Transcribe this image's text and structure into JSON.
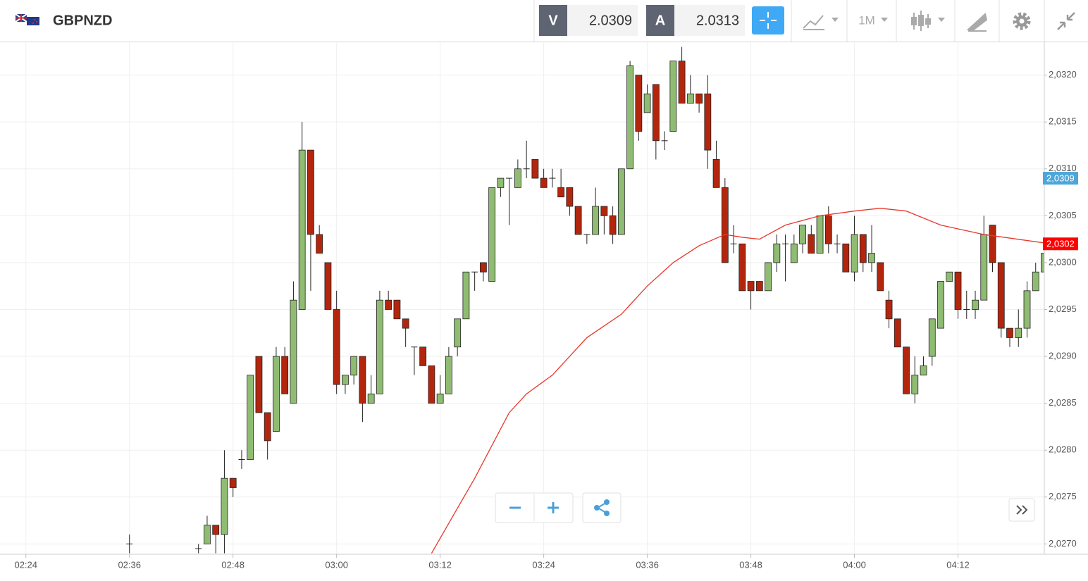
{
  "header": {
    "symbol": "GBPNZD",
    "sell_label": "V",
    "sell": "2.0309",
    "buy_label": "A",
    "buy": "2.0313",
    "timeframe": "1M"
  },
  "chart_data": {
    "type": "candlestick",
    "x": [
      "02:36",
      "02:44",
      "02:45",
      "02:46",
      "02:47",
      "02:48",
      "02:49",
      "02:50",
      "02:51",
      "02:52",
      "02:53",
      "02:54",
      "02:55",
      "02:56",
      "02:57",
      "02:58",
      "02:59",
      "03:00",
      "03:01",
      "03:02",
      "03:03",
      "03:04",
      "03:05",
      "03:06",
      "03:07",
      "03:08",
      "03:09",
      "03:10",
      "03:11",
      "03:12",
      "03:13",
      "03:14",
      "03:15",
      "03:16",
      "03:17",
      "03:18",
      "03:19",
      "03:20",
      "03:21",
      "03:22",
      "03:23",
      "03:24",
      "03:25",
      "03:26",
      "03:27",
      "03:28",
      "03:29",
      "03:30",
      "03:31",
      "03:32",
      "03:33",
      "03:34",
      "03:35",
      "03:36",
      "03:37",
      "03:38",
      "03:39",
      "03:40",
      "03:41",
      "03:42",
      "03:43",
      "03:44",
      "03:45",
      "03:46",
      "03:47",
      "03:48",
      "03:49",
      "03:50",
      "03:51",
      "03:52",
      "03:53",
      "03:54",
      "03:55",
      "03:56",
      "03:57",
      "03:58",
      "03:59",
      "04:00",
      "04:01",
      "04:02",
      "04:03",
      "04:04",
      "04:05",
      "04:06",
      "04:07",
      "04:08",
      "04:09",
      "04:10",
      "04:11",
      "04:12",
      "04:13",
      "04:14",
      "04:15",
      "04:16",
      "04:17",
      "04:18",
      "04:19",
      "04:20",
      "04:21",
      "04:22"
    ],
    "open": [
      2.027,
      2.02695,
      2.027,
      2.0272,
      2.0271,
      2.0277,
      2.0279,
      2.0279,
      2.029,
      2.0284,
      2.0282,
      2.029,
      2.0285,
      2.0295,
      2.0312,
      2.0303,
      2.03,
      2.0295,
      2.0287,
      2.0288,
      2.029,
      2.0285,
      2.0286,
      2.0296,
      2.0296,
      2.0294,
      2.0291,
      2.0291,
      2.0289,
      2.0285,
      2.0286,
      2.0291,
      2.0294,
      2.0299,
      2.03,
      2.0298,
      2.0308,
      2.0309,
      2.0308,
      2.031,
      2.0311,
      2.0309,
      2.0309,
      2.0308,
      2.0308,
      2.0306,
      2.0303,
      2.0303,
      2.0306,
      2.0305,
      2.0303,
      2.031,
      2.032,
      2.0316,
      2.0319,
      2.0313,
      2.0314,
      2.03215,
      2.0317,
      2.0318,
      2.0318,
      2.0311,
      2.0308,
      2.0302,
      2.0302,
      2.0298,
      2.0298,
      2.0297,
      2.03,
      2.0302,
      2.03,
      2.0302,
      2.0303,
      2.0301,
      2.0305,
      2.0302,
      2.0302,
      2.0299,
      2.0303,
      2.03,
      2.03,
      2.0296,
      2.0294,
      2.0291,
      2.0286,
      2.0288,
      2.029,
      2.0293,
      2.0298,
      2.0299,
      2.0295,
      2.0295,
      2.0296,
      2.0304,
      2.03,
      2.0293,
      2.0292,
      2.0293,
      2.0297,
      2.0299
    ],
    "high": [
      2.0271,
      2.027,
      2.0273,
      2.0272,
      2.028,
      2.0277,
      2.028,
      2.0288,
      2.029,
      2.0284,
      2.0291,
      2.0291,
      2.0298,
      2.0315,
      2.0312,
      2.0304,
      2.03,
      2.0297,
      2.0288,
      2.029,
      2.029,
      2.0288,
      2.0297,
      2.0297,
      2.0296,
      2.0294,
      2.0291,
      2.0291,
      2.0289,
      2.0288,
      2.0291,
      2.0294,
      2.0299,
      2.0299,
      2.03,
      2.0308,
      2.0309,
      2.0309,
      2.0311,
      2.0313,
      2.0311,
      2.031,
      2.031,
      2.031,
      2.0308,
      2.0306,
      2.0303,
      2.0308,
      2.0306,
      2.0306,
      2.031,
      2.03215,
      2.032,
      2.0319,
      2.0319,
      2.0314,
      2.03215,
      2.0323,
      2.032,
      2.0318,
      2.032,
      2.0313,
      2.0309,
      2.0304,
      2.0302,
      2.0298,
      2.0298,
      2.03,
      2.0303,
      2.0303,
      2.0303,
      2.0304,
      2.0304,
      2.0305,
      2.0306,
      2.0303,
      2.0302,
      2.0305,
      2.0303,
      2.0304,
      2.03,
      2.0297,
      2.0294,
      2.0291,
      2.029,
      2.029,
      2.0294,
      2.0298,
      2.0299,
      2.0299,
      2.0297,
      2.0297,
      2.0305,
      2.0304,
      2.03,
      2.0293,
      2.0295,
      2.0298,
      2.03,
      2.0302
    ],
    "low": [
      2.0269,
      2.0269,
      2.027,
      2.0269,
      2.0269,
      2.0275,
      2.0278,
      2.0279,
      2.0284,
      2.0279,
      2.0282,
      2.0286,
      2.0285,
      2.0295,
      2.0297,
      2.0301,
      2.0295,
      2.0286,
      2.0286,
      2.0287,
      2.0283,
      2.0285,
      2.0286,
      2.0295,
      2.0294,
      2.0291,
      2.0288,
      2.0289,
      2.0285,
      2.0285,
      2.0286,
      2.029,
      2.0294,
      2.0297,
      2.0298,
      2.0298,
      2.0307,
      2.0304,
      2.0308,
      2.0309,
      2.0309,
      2.0308,
      2.0308,
      2.0307,
      2.0305,
      2.0303,
      2.0302,
      2.0303,
      2.0303,
      2.0302,
      2.0303,
      2.031,
      2.0313,
      2.0316,
      2.0311,
      2.0312,
      2.0314,
      2.0317,
      2.0317,
      2.0316,
      2.031,
      2.0308,
      2.03,
      2.0301,
      2.0297,
      2.0295,
      2.0297,
      2.0297,
      2.0299,
      2.0298,
      2.03,
      2.0301,
      2.0301,
      2.0301,
      2.0301,
      2.0301,
      2.0299,
      2.0298,
      2.0299,
      2.0299,
      2.0297,
      2.0293,
      2.0291,
      2.0286,
      2.0285,
      2.0288,
      2.0289,
      2.0293,
      2.0298,
      2.0294,
      2.0294,
      2.0294,
      2.0296,
      2.0299,
      2.0292,
      2.0291,
      2.0291,
      2.0292,
      2.0297,
      2.0299
    ],
    "close": [
      2.027,
      2.02695,
      2.0272,
      2.0271,
      2.0277,
      2.0276,
      2.0279,
      2.0288,
      2.0284,
      2.0281,
      2.029,
      2.0286,
      2.0296,
      2.0312,
      2.0303,
      2.0301,
      2.0295,
      2.0287,
      2.0288,
      2.029,
      2.0285,
      2.0286,
      2.0296,
      2.0295,
      2.0294,
      2.0293,
      2.0291,
      2.0289,
      2.0285,
      2.0286,
      2.029,
      2.0294,
      2.0299,
      2.0299,
      2.0299,
      2.0308,
      2.0309,
      2.0309,
      2.031,
      2.031,
      2.0309,
      2.0308,
      2.0309,
      2.0307,
      2.0306,
      2.0303,
      2.0303,
      2.0306,
      2.0305,
      2.0303,
      2.031,
      2.0321,
      2.0314,
      2.0318,
      2.0313,
      2.0313,
      2.03215,
      2.0317,
      2.0318,
      2.0317,
      2.0312,
      2.0308,
      2.03,
      2.0302,
      2.0297,
      2.0297,
      2.0297,
      2.03,
      2.0302,
      2.0302,
      2.0302,
      2.0304,
      2.0301,
      2.0305,
      2.0302,
      2.0302,
      2.0299,
      2.0303,
      2.03,
      2.0301,
      2.0297,
      2.0294,
      2.0291,
      2.0286,
      2.0288,
      2.0289,
      2.0294,
      2.0298,
      2.0299,
      2.0295,
      2.0295,
      2.0296,
      2.0303,
      2.03,
      2.0293,
      2.0292,
      2.0293,
      2.0297,
      2.0299,
      2.0301
    ],
    "up_color": "#8fbc72",
    "down_color": "#b3260d",
    "wick_color": "#222222",
    "moving_average": {
      "color": "#e8372b",
      "x": [
        "03:11",
        "03:16",
        "03:20",
        "03:22",
        "03:25",
        "03:29",
        "03:33",
        "03:36",
        "03:39",
        "03:42",
        "03:45",
        "03:47",
        "03:49",
        "03:52",
        "03:56",
        "04:00",
        "04:03",
        "04:06",
        "04:10",
        "04:15",
        "04:22"
      ],
      "values": [
        2.0269,
        2.0277,
        2.0284,
        2.0286,
        2.0288,
        2.0292,
        2.02945,
        2.02975,
        2.03,
        2.03018,
        2.0303,
        2.03027,
        2.03025,
        2.0304,
        2.0305,
        2.03055,
        2.03058,
        2.03055,
        2.0304,
        2.0303,
        2.03021
      ]
    },
    "price_tags": [
      {
        "value": 2.0309,
        "label": "2,0309",
        "color": "#4da6d9"
      },
      {
        "value": 2.0302,
        "label": "2,0302",
        "color": "#ff0000"
      }
    ],
    "xlim": [
      "02:21",
      "04:22"
    ],
    "xticks": [
      "02:24",
      "02:36",
      "02:48",
      "03:00",
      "03:12",
      "03:24",
      "03:36",
      "03:48",
      "04:00",
      "04:12"
    ],
    "ylim": [
      2.02689,
      2.03235
    ],
    "yticks": [
      {
        "value": 2.027,
        "label": "2,0270"
      },
      {
        "value": 2.0275,
        "label": "2,0275"
      },
      {
        "value": 2.028,
        "label": "2,0280"
      },
      {
        "value": 2.0285,
        "label": "2,0285"
      },
      {
        "value": 2.029,
        "label": "2,0290"
      },
      {
        "value": 2.0295,
        "label": "2,0295"
      },
      {
        "value": 2.03,
        "label": "2,0300"
      },
      {
        "value": 2.0305,
        "label": "2,0305"
      },
      {
        "value": 2.031,
        "label": "2,0310"
      },
      {
        "value": 2.0315,
        "label": "2,0315"
      },
      {
        "value": 2.032,
        "label": "2,0320"
      }
    ],
    "grid": true
  }
}
